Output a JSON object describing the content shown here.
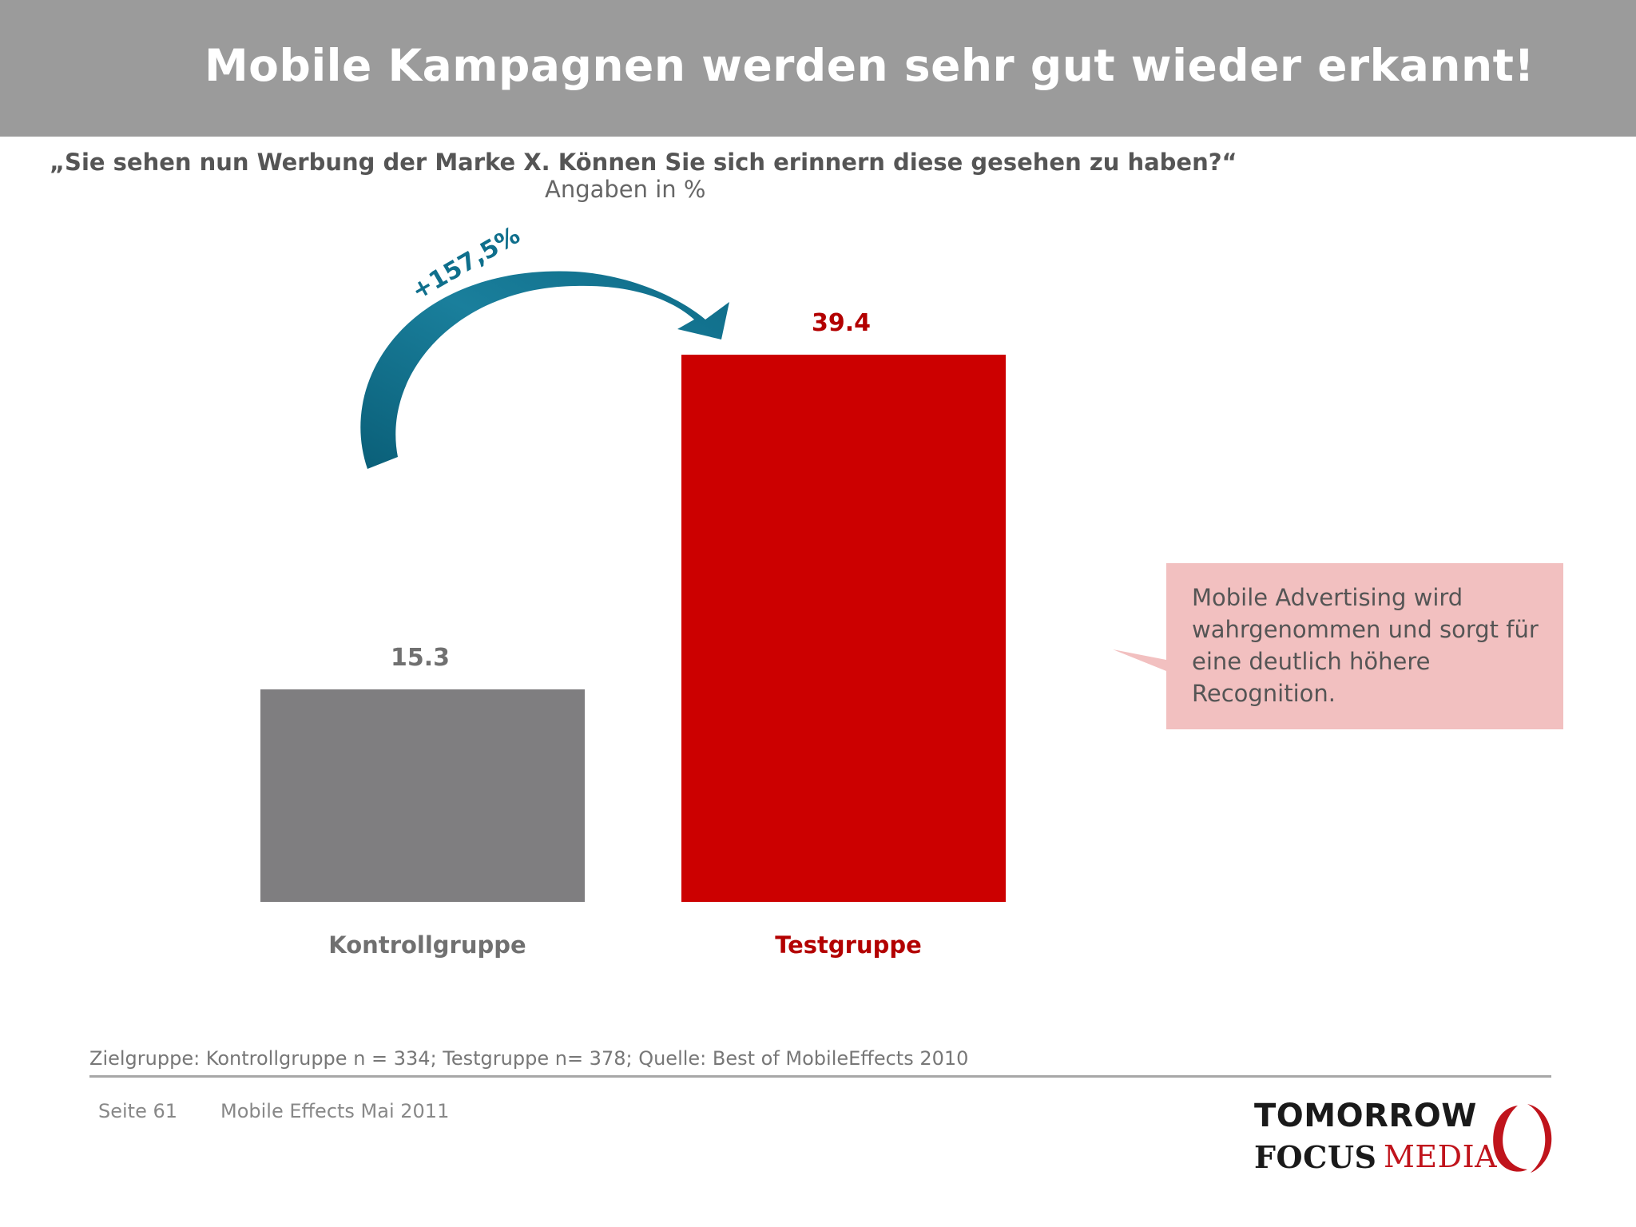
{
  "header": {
    "title": "Mobile Kampagnen werden sehr gut wieder erkannt!"
  },
  "question": "„Sie sehen nun Werbung der Marke X. Können Sie sich erinnern diese gesehen zu haben?“",
  "unit_note": "Angaben in %",
  "chart_data": {
    "type": "bar",
    "categories": [
      "Kontrollgruppe",
      "Testgruppe"
    ],
    "values": [
      15.3,
      39.4
    ],
    "value_labels": [
      "15.3",
      "39.4"
    ],
    "colors": [
      "#7f7e80",
      "#cc0000"
    ],
    "label_colors": [
      "#707070",
      "#b30000"
    ],
    "ylim": [
      0,
      39.4
    ],
    "grid": false,
    "annotation": {
      "text": "+157,5%",
      "color": "#0f6f8c"
    }
  },
  "callout": {
    "lines": [
      "Mobile Advertising wird",
      "wahrgenommen und sorgt für",
      "eine deutlich höhere",
      "Recognition."
    ],
    "background": "#f2c0c0"
  },
  "footer": {
    "note": "Zielgruppe: Kontrollgruppe n = 334; Testgruppe n= 378; Quelle: Best of MobileEffects 2010",
    "page": "Seite 61",
    "document": "Mobile Effects Mai 2011"
  },
  "logo": {
    "line1": "TOMORROW",
    "line2": "FOCUS",
    "line3": "MEDIA"
  }
}
